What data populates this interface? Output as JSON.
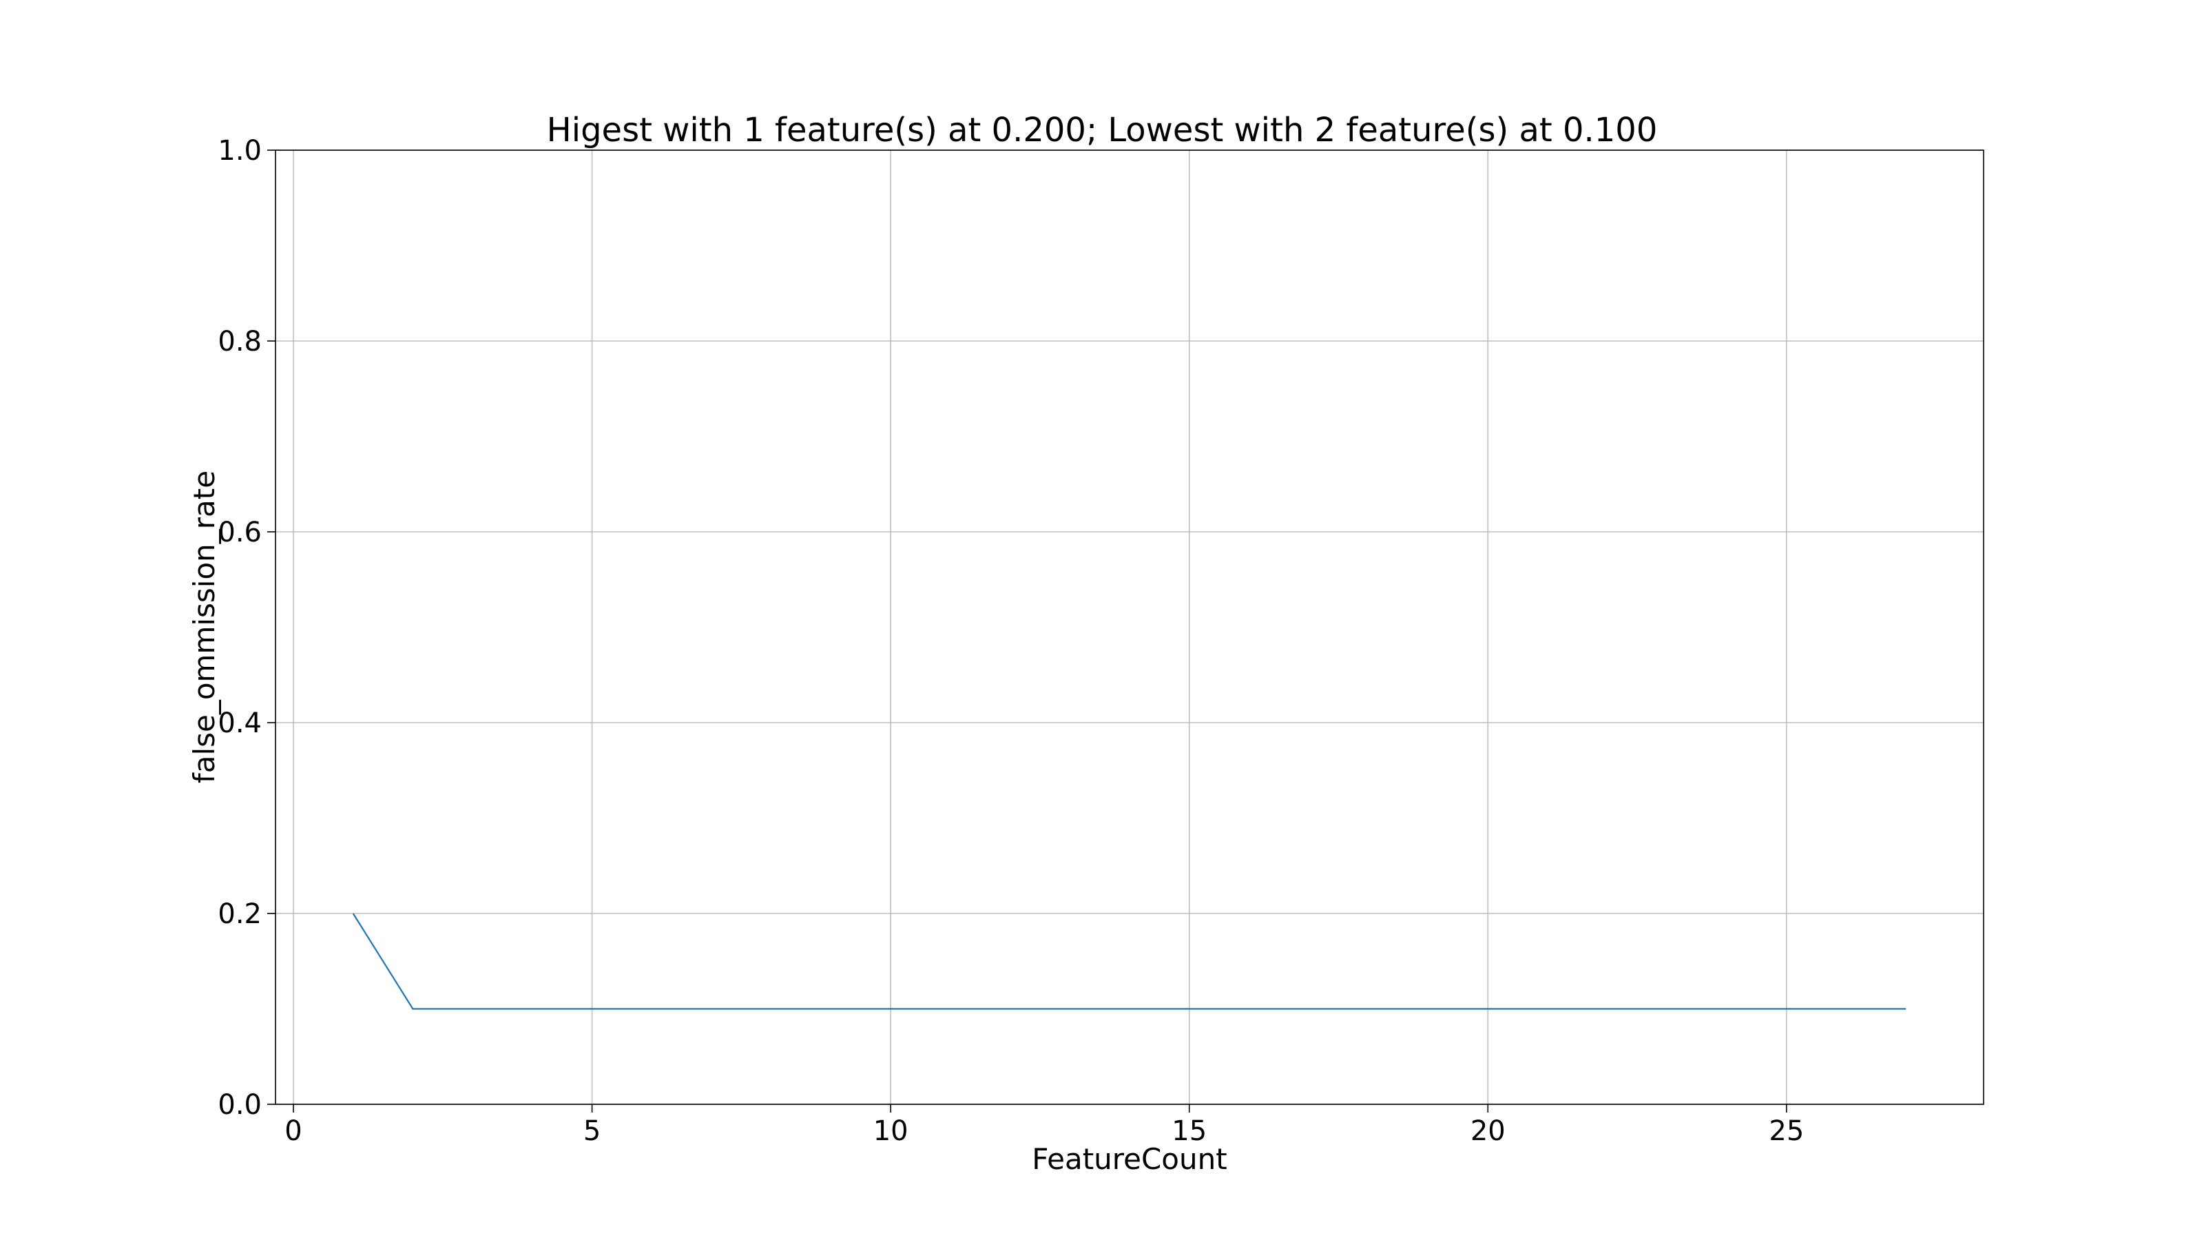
{
  "chart_data": {
    "type": "line",
    "title": "Higest with 1 feature(s) at 0.200; Lowest with 2 feature(s) at 0.100",
    "xlabel": "FeatureCount",
    "ylabel": "false_ommission_rate",
    "xlim": [
      -0.3,
      28.3
    ],
    "ylim": [
      0,
      1
    ],
    "xticks": [
      0,
      5,
      10,
      15,
      20,
      25
    ],
    "xtick_labels": [
      "0",
      "5",
      "10",
      "15",
      "20",
      "25"
    ],
    "yticks": [
      0,
      0.2,
      0.4,
      0.6,
      0.8,
      1
    ],
    "ytick_labels": [
      "0.0",
      "0.2",
      "0.4",
      "0.6",
      "0.8",
      "1.0"
    ],
    "grid": true,
    "series": [
      {
        "color": "#1f77b4",
        "x": [
          1,
          2,
          3,
          4,
          5,
          6,
          7,
          8,
          9,
          10,
          11,
          12,
          13,
          14,
          15,
          16,
          17,
          18,
          19,
          20,
          21,
          22,
          23,
          24,
          25,
          26,
          27
        ],
        "values": [
          0.2,
          0.1,
          0.1,
          0.1,
          0.1,
          0.1,
          0.1,
          0.1,
          0.1,
          0.1,
          0.1,
          0.1,
          0.1,
          0.1,
          0.1,
          0.1,
          0.1,
          0.1,
          0.1,
          0.1,
          0.1,
          0.1,
          0.1,
          0.1,
          0.1,
          0.1,
          0.1
        ]
      }
    ]
  }
}
